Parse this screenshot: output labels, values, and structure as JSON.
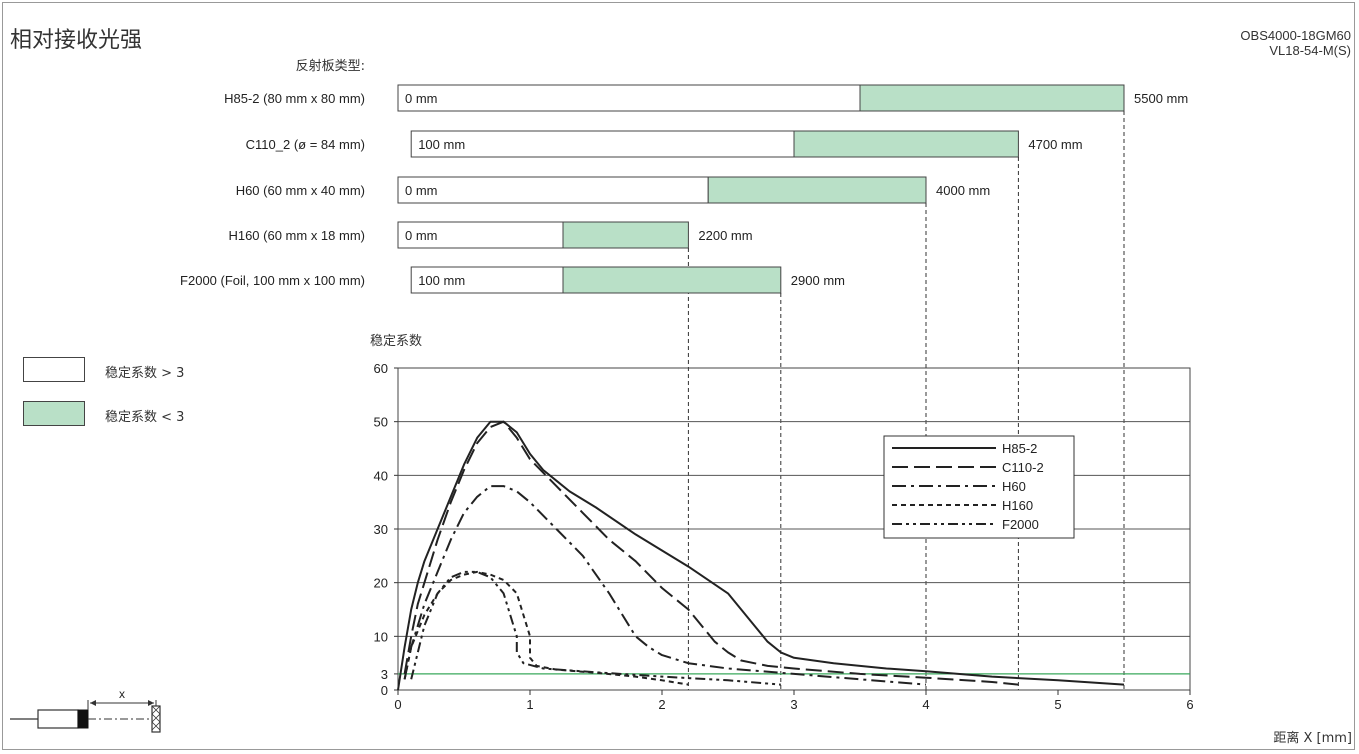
{
  "header": {
    "title": "相对接收光强",
    "model_line1": "OBS4000-18GM60",
    "model_line2": "VL18-54-M(S)"
  },
  "reflector_header": "反射板类型:",
  "range_legend": [
    {
      "label": "稳定系数 > 3",
      "color": "#ffffff"
    },
    {
      "label": "稳定系数 < 3",
      "color": "#b9e0c7"
    }
  ],
  "colors": {
    "range_fill": "#b9e0c7",
    "threshold_line": "#3aa85c",
    "curve": "#222222"
  },
  "sensor_diagram": {
    "label": "x"
  },
  "chart_data": [
    {
      "type": "bar",
      "title": "",
      "description_unit": "mm",
      "categories": [
        "H85-2 (80 mm x 80 mm)",
        "C110_2 (ø = 84 mm)",
        "H60 (60 mm x 40 mm)",
        "H160 (60 mm x 18 mm)",
        "F2000 (Foil, 100 mm x 100 mm)"
      ],
      "bars": [
        {
          "start": 0,
          "excess_end": 3500,
          "end": 5500,
          "start_label": "0 mm",
          "end_label": "5500 mm"
        },
        {
          "start": 100,
          "excess_end": 3000,
          "end": 4700,
          "start_label": "100 mm",
          "end_label": "4700 mm"
        },
        {
          "start": 0,
          "excess_end": 2350,
          "end": 4000,
          "start_label": "0 mm",
          "end_label": "4000 mm"
        },
        {
          "start": 0,
          "excess_end": 1250,
          "end": 2200,
          "start_label": "0 mm",
          "end_label": "2200 mm"
        },
        {
          "start": 100,
          "excess_end": 1250,
          "end": 2900,
          "start_label": "100 mm",
          "end_label": "2900 mm"
        }
      ]
    },
    {
      "type": "line",
      "title": "",
      "ylabel": "稳定系数",
      "xlabel": "距离 X [mm]",
      "xlim": [
        0,
        6
      ],
      "ylim": [
        0,
        60
      ],
      "xticks": [
        0,
        1,
        2,
        3,
        4,
        5,
        6
      ],
      "yticks": [
        0,
        3,
        10,
        20,
        30,
        40,
        50,
        60
      ],
      "grid": true,
      "legend_position": "top-right",
      "threshold": 3,
      "series": [
        {
          "name": "H85-2",
          "dash": "solid",
          "x": [
            0,
            0.05,
            0.1,
            0.15,
            0.2,
            0.3,
            0.4,
            0.5,
            0.6,
            0.7,
            0.8,
            0.9,
            1.0,
            1.1,
            1.2,
            1.3,
            1.5,
            1.8,
            2.0,
            2.2,
            2.5,
            2.6,
            2.7,
            2.8,
            2.9,
            3.0,
            3.3,
            3.7,
            4.0,
            4.5,
            5.0,
            5.5
          ],
          "y": [
            0,
            8,
            15,
            20,
            24,
            30,
            36,
            42,
            47,
            50,
            50,
            48,
            44,
            41,
            39,
            37,
            34,
            29,
            26,
            23,
            18,
            15,
            12,
            9,
            7,
            6,
            5,
            4,
            3.5,
            2.5,
            1.8,
            1.0
          ]
        },
        {
          "name": "C110-2",
          "dash": "long-dash",
          "x": [
            0.05,
            0.1,
            0.15,
            0.2,
            0.3,
            0.4,
            0.5,
            0.6,
            0.7,
            0.8,
            0.9,
            1.0,
            1.2,
            1.4,
            1.6,
            1.8,
            2.0,
            2.2,
            2.3,
            2.4,
            2.5,
            2.6,
            2.8,
            3.0,
            3.5,
            4.0,
            4.5,
            4.7
          ],
          "y": [
            3,
            10,
            16,
            20,
            28,
            35,
            41,
            46,
            49,
            50,
            47,
            43,
            38,
            33,
            28,
            24,
            19,
            15,
            12,
            9,
            7,
            5.5,
            4.5,
            4,
            3,
            2.3,
            1.5,
            1.0
          ]
        },
        {
          "name": "H60",
          "dash": "dash-dot",
          "x": [
            0.05,
            0.1,
            0.2,
            0.3,
            0.4,
            0.5,
            0.6,
            0.7,
            0.8,
            0.9,
            1.0,
            1.2,
            1.4,
            1.6,
            1.7,
            1.8,
            1.9,
            2.0,
            2.2,
            2.5,
            3.0,
            3.5,
            4.0
          ],
          "y": [
            2,
            8,
            16,
            22,
            28,
            33,
            36,
            38,
            38,
            37,
            35,
            30,
            25,
            18,
            14,
            10,
            8,
            6.5,
            5,
            4,
            3,
            2,
            1.0
          ]
        },
        {
          "name": "H160",
          "dash": "short-dash",
          "x": [
            0.05,
            0.1,
            0.2,
            0.3,
            0.4,
            0.5,
            0.6,
            0.7,
            0.8,
            0.9,
            0.95,
            1.0,
            1.0,
            1.05,
            1.2,
            1.5,
            1.8,
            2.0,
            2.2
          ],
          "y": [
            2,
            8,
            14,
            18,
            20.5,
            21.5,
            22,
            21.5,
            20.5,
            18,
            14,
            10,
            6,
            4.5,
            3.8,
            3.2,
            2.5,
            1.8,
            1.0
          ]
        },
        {
          "name": "F2000",
          "dash": "dash-dot-dot",
          "x": [
            0.1,
            0.2,
            0.3,
            0.4,
            0.5,
            0.6,
            0.7,
            0.8,
            0.85,
            0.9,
            0.9,
            0.95,
            1.1,
            1.5,
            2.0,
            2.5,
            2.9
          ],
          "y": [
            2,
            12,
            18,
            21,
            22,
            22,
            21,
            18,
            14,
            10,
            7,
            5,
            4,
            3.3,
            2.5,
            1.8,
            1.0
          ]
        }
      ]
    }
  ]
}
